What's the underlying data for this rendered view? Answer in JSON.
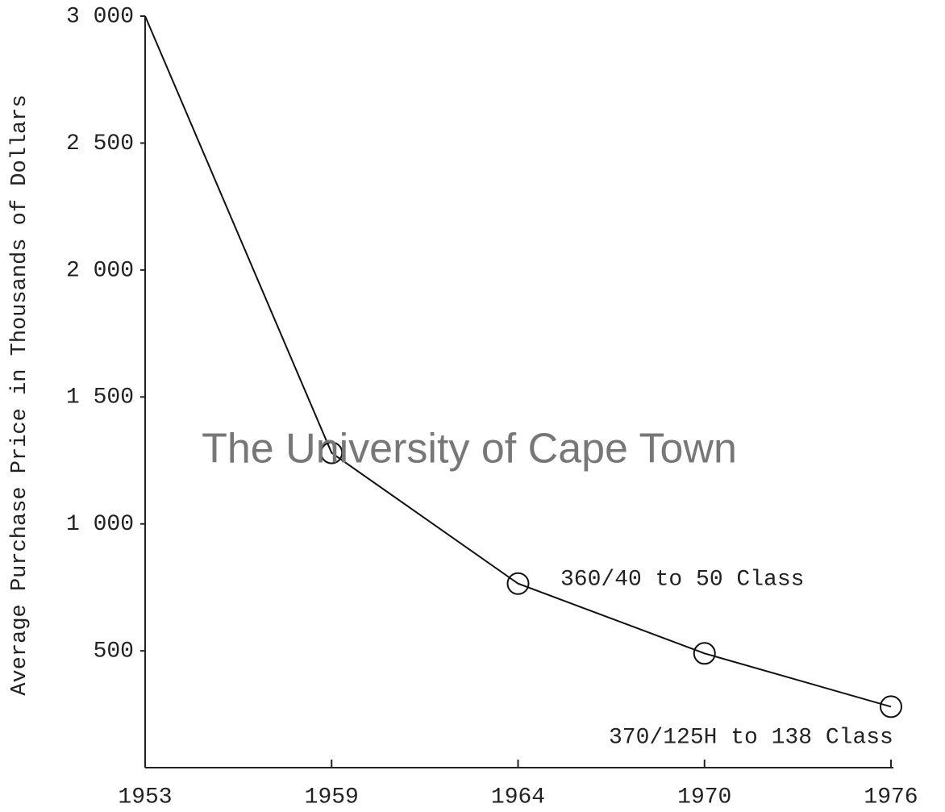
{
  "chart_data": {
    "type": "line",
    "ylabel": "Average Purchase Price in Thousands of Dollars",
    "categories": [
      "1953",
      "1959",
      "1964",
      "1970",
      "1976"
    ],
    "series": [
      {
        "name": "Average purchase price",
        "color": "#111111",
        "values": [
          3000,
          1280,
          765,
          490,
          280
        ]
      }
    ],
    "ylim": [
      40,
      3000
    ],
    "yticks": [
      {
        "value": 500,
        "label": "500"
      },
      {
        "value": 1000,
        "label": "1 000"
      },
      {
        "value": 1500,
        "label": "1 500"
      },
      {
        "value": 2000,
        "label": "2 000"
      },
      {
        "value": 2500,
        "label": "2 500"
      },
      {
        "value": 3000,
        "label": "3 000"
      }
    ],
    "annotations": [
      "360/40 to 50 Class",
      "370/125H to 138 Class"
    ],
    "watermark": "The University of Cape Town"
  }
}
